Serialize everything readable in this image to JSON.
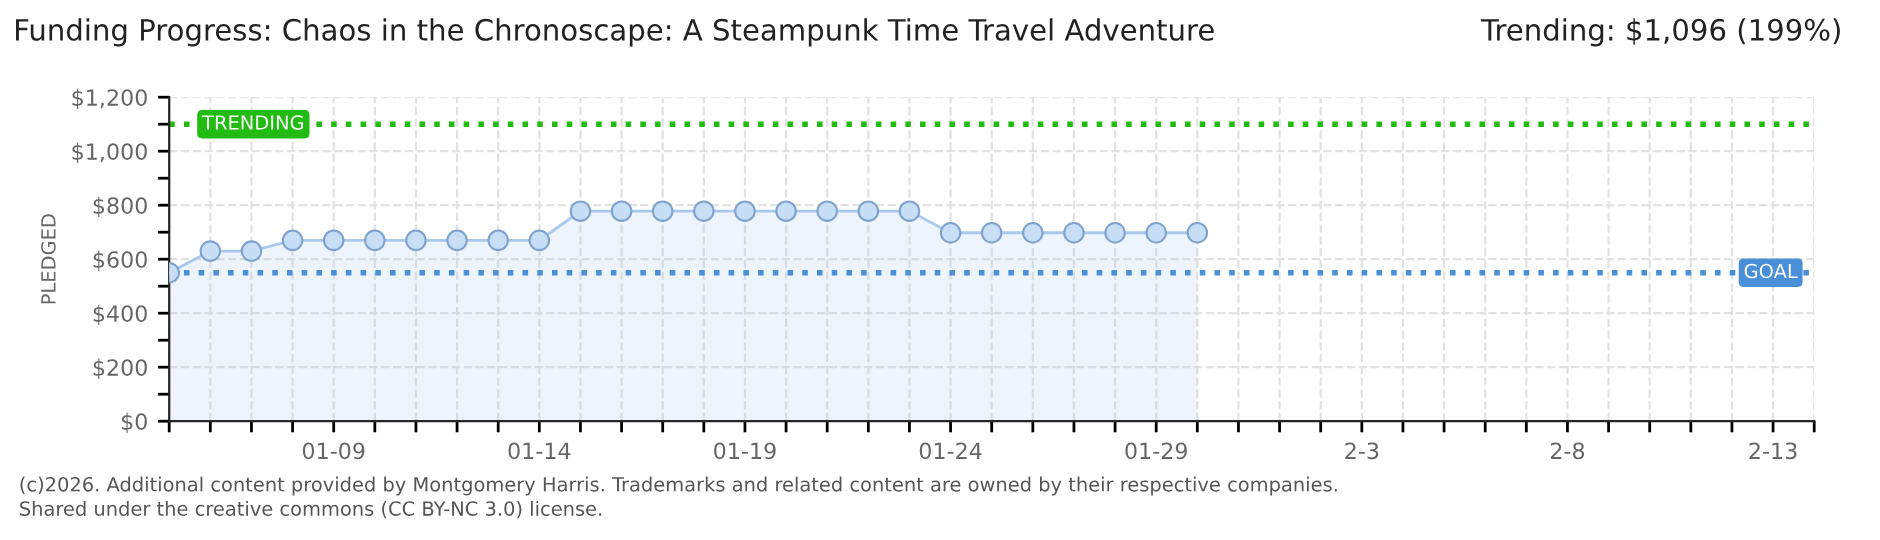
{
  "chart_data": {
    "type": "area",
    "title": "Funding Progress: Chaos in the Chronoscape: A Steampunk Time Travel Adventure",
    "subtitle": "Trending: $1,096 (199%)",
    "ylabel": "PLEDGED",
    "x": [
      "2026-01-05",
      "2026-01-06",
      "2026-01-07",
      "2026-01-08",
      "2026-01-09",
      "2026-01-10",
      "2026-01-11",
      "2026-01-12",
      "2026-01-13",
      "2026-01-14",
      "2026-01-15",
      "2026-01-16",
      "2026-01-17",
      "2026-01-18",
      "2026-01-19",
      "2026-01-20",
      "2026-01-21",
      "2026-01-22",
      "2026-01-23",
      "2026-01-24",
      "2026-01-25",
      "2026-01-26",
      "2026-01-27",
      "2026-01-28",
      "2026-01-29",
      "2026-01-30"
    ],
    "series": [
      {
        "color": "#a9c8ee",
        "values": [
          550,
          630,
          630,
          670,
          670,
          670,
          670,
          670,
          670,
          670,
          778,
          778,
          778,
          778,
          778,
          778,
          778,
          778,
          778,
          698,
          698,
          698,
          698,
          698,
          698,
          698
        ]
      }
    ],
    "marker": "circle",
    "xlim": [
      "2026-01-05",
      "2026-02-14"
    ],
    "xticks": [
      {
        "value": "2026-01-05",
        "label": null
      },
      {
        "value": "2026-01-06",
        "label": null
      },
      {
        "value": "2026-01-07",
        "label": null
      },
      {
        "value": "2026-01-08",
        "label": null
      },
      {
        "value": "2026-01-09",
        "label": "01-09"
      },
      {
        "value": "2026-01-10",
        "label": null
      },
      {
        "value": "2026-01-11",
        "label": null
      },
      {
        "value": "2026-01-12",
        "label": null
      },
      {
        "value": "2026-01-13",
        "label": null
      },
      {
        "value": "2026-01-14",
        "label": "01-14"
      },
      {
        "value": "2026-01-15",
        "label": null
      },
      {
        "value": "2026-01-16",
        "label": null
      },
      {
        "value": "2026-01-17",
        "label": null
      },
      {
        "value": "2026-01-18",
        "label": null
      },
      {
        "value": "2026-01-19",
        "label": "01-19"
      },
      {
        "value": "2026-01-20",
        "label": null
      },
      {
        "value": "2026-01-21",
        "label": null
      },
      {
        "value": "2026-01-22",
        "label": null
      },
      {
        "value": "2026-01-23",
        "label": null
      },
      {
        "value": "2026-01-24",
        "label": "01-24"
      },
      {
        "value": "2026-01-25",
        "label": null
      },
      {
        "value": "2026-01-26",
        "label": null
      },
      {
        "value": "2026-01-27",
        "label": null
      },
      {
        "value": "2026-01-28",
        "label": null
      },
      {
        "value": "2026-01-29",
        "label": "01-29"
      },
      {
        "value": "2026-01-30",
        "label": null
      },
      {
        "value": "2026-01-31",
        "label": null
      },
      {
        "value": "2026-02-01",
        "label": null
      },
      {
        "value": "2026-02-02",
        "label": null
      },
      {
        "value": "2026-02-03",
        "label": "2-3"
      },
      {
        "value": "2026-02-04",
        "label": null
      },
      {
        "value": "2026-02-05",
        "label": null
      },
      {
        "value": "2026-02-06",
        "label": null
      },
      {
        "value": "2026-02-07",
        "label": null
      },
      {
        "value": "2026-02-08",
        "label": "2-8"
      },
      {
        "value": "2026-02-09",
        "label": null
      },
      {
        "value": "2026-02-10",
        "label": null
      },
      {
        "value": "2026-02-11",
        "label": null
      },
      {
        "value": "2026-02-12",
        "label": null
      },
      {
        "value": "2026-02-13",
        "label": "2-13"
      },
      {
        "value": "2026-02-14",
        "label": null
      }
    ],
    "ylim": [
      0,
      1200
    ],
    "yticks": [
      {
        "value": 0,
        "label": "$0"
      },
      {
        "value": 100,
        "label": null
      },
      {
        "value": 200,
        "label": "$200"
      },
      {
        "value": 300,
        "label": null
      },
      {
        "value": 400,
        "label": "$400"
      },
      {
        "value": 500,
        "label": null
      },
      {
        "value": 600,
        "label": "$600"
      },
      {
        "value": 700,
        "label": null
      },
      {
        "value": 800,
        "label": "$800"
      },
      {
        "value": 900,
        "label": null
      },
      {
        "value": 1000,
        "label": "$1,000"
      },
      {
        "value": 1100,
        "label": null
      },
      {
        "value": 1200,
        "label": "$1,200"
      }
    ],
    "grid": true,
    "ref_lines": [
      {
        "axis": "y",
        "value": 1100,
        "label": "TRENDING",
        "color": "#22bb11",
        "line_style": "dotted"
      },
      {
        "axis": "y",
        "value": 550,
        "label": "GOAL",
        "color": "#4a90d9",
        "line_style": "dotted"
      }
    ],
    "annotations": [
      "(c)2026. Additional content provided by Montgomery Harris. Trademarks and related content are owned by their respective companies.",
      "Shared under the creative commons (CC BY-NC 3.0) license."
    ]
  }
}
